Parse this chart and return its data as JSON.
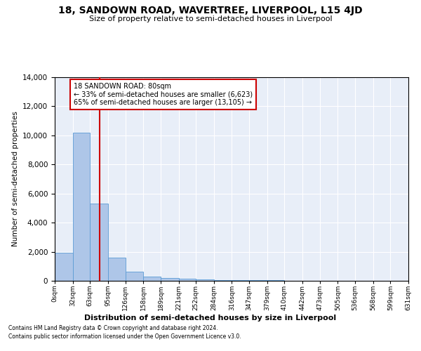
{
  "title": "18, SANDOWN ROAD, WAVERTREE, LIVERPOOL, L15 4JD",
  "subtitle": "Size of property relative to semi-detached houses in Liverpool",
  "xlabel": "Distribution of semi-detached houses by size in Liverpool",
  "ylabel": "Number of semi-detached properties",
  "footnote1": "Contains HM Land Registry data © Crown copyright and database right 2024.",
  "footnote2": "Contains public sector information licensed under the Open Government Licence v3.0.",
  "annotation_title": "18 SANDOWN ROAD: 80sqm",
  "annotation_line1": "← 33% of semi-detached houses are smaller (6,623)",
  "annotation_line2": "65% of semi-detached houses are larger (13,105) →",
  "property_size": 80,
  "bar_color": "#aec6e8",
  "bar_edge_color": "#5b9bd5",
  "vline_color": "#cc0000",
  "annotation_box_color": "#cc0000",
  "bg_color": "#e8eef8",
  "grid_color": "#ffffff",
  "bin_edges": [
    0,
    32,
    63,
    95,
    126,
    158,
    189,
    221,
    252,
    284,
    316,
    347,
    379,
    410,
    442,
    473,
    505,
    536,
    568,
    599,
    631
  ],
  "bin_labels": [
    "0sqm",
    "32sqm",
    "63sqm",
    "95sqm",
    "126sqm",
    "158sqm",
    "189sqm",
    "221sqm",
    "252sqm",
    "284sqm",
    "316sqm",
    "347sqm",
    "379sqm",
    "410sqm",
    "442sqm",
    "473sqm",
    "505sqm",
    "536sqm",
    "568sqm",
    "599sqm",
    "631sqm"
  ],
  "counts": [
    1950,
    10200,
    5300,
    1580,
    650,
    290,
    180,
    145,
    110,
    65,
    50,
    40,
    30,
    20,
    15,
    10,
    8,
    5,
    3,
    2
  ],
  "ylim": [
    0,
    14000
  ],
  "yticks": [
    0,
    2000,
    4000,
    6000,
    8000,
    10000,
    12000,
    14000
  ]
}
